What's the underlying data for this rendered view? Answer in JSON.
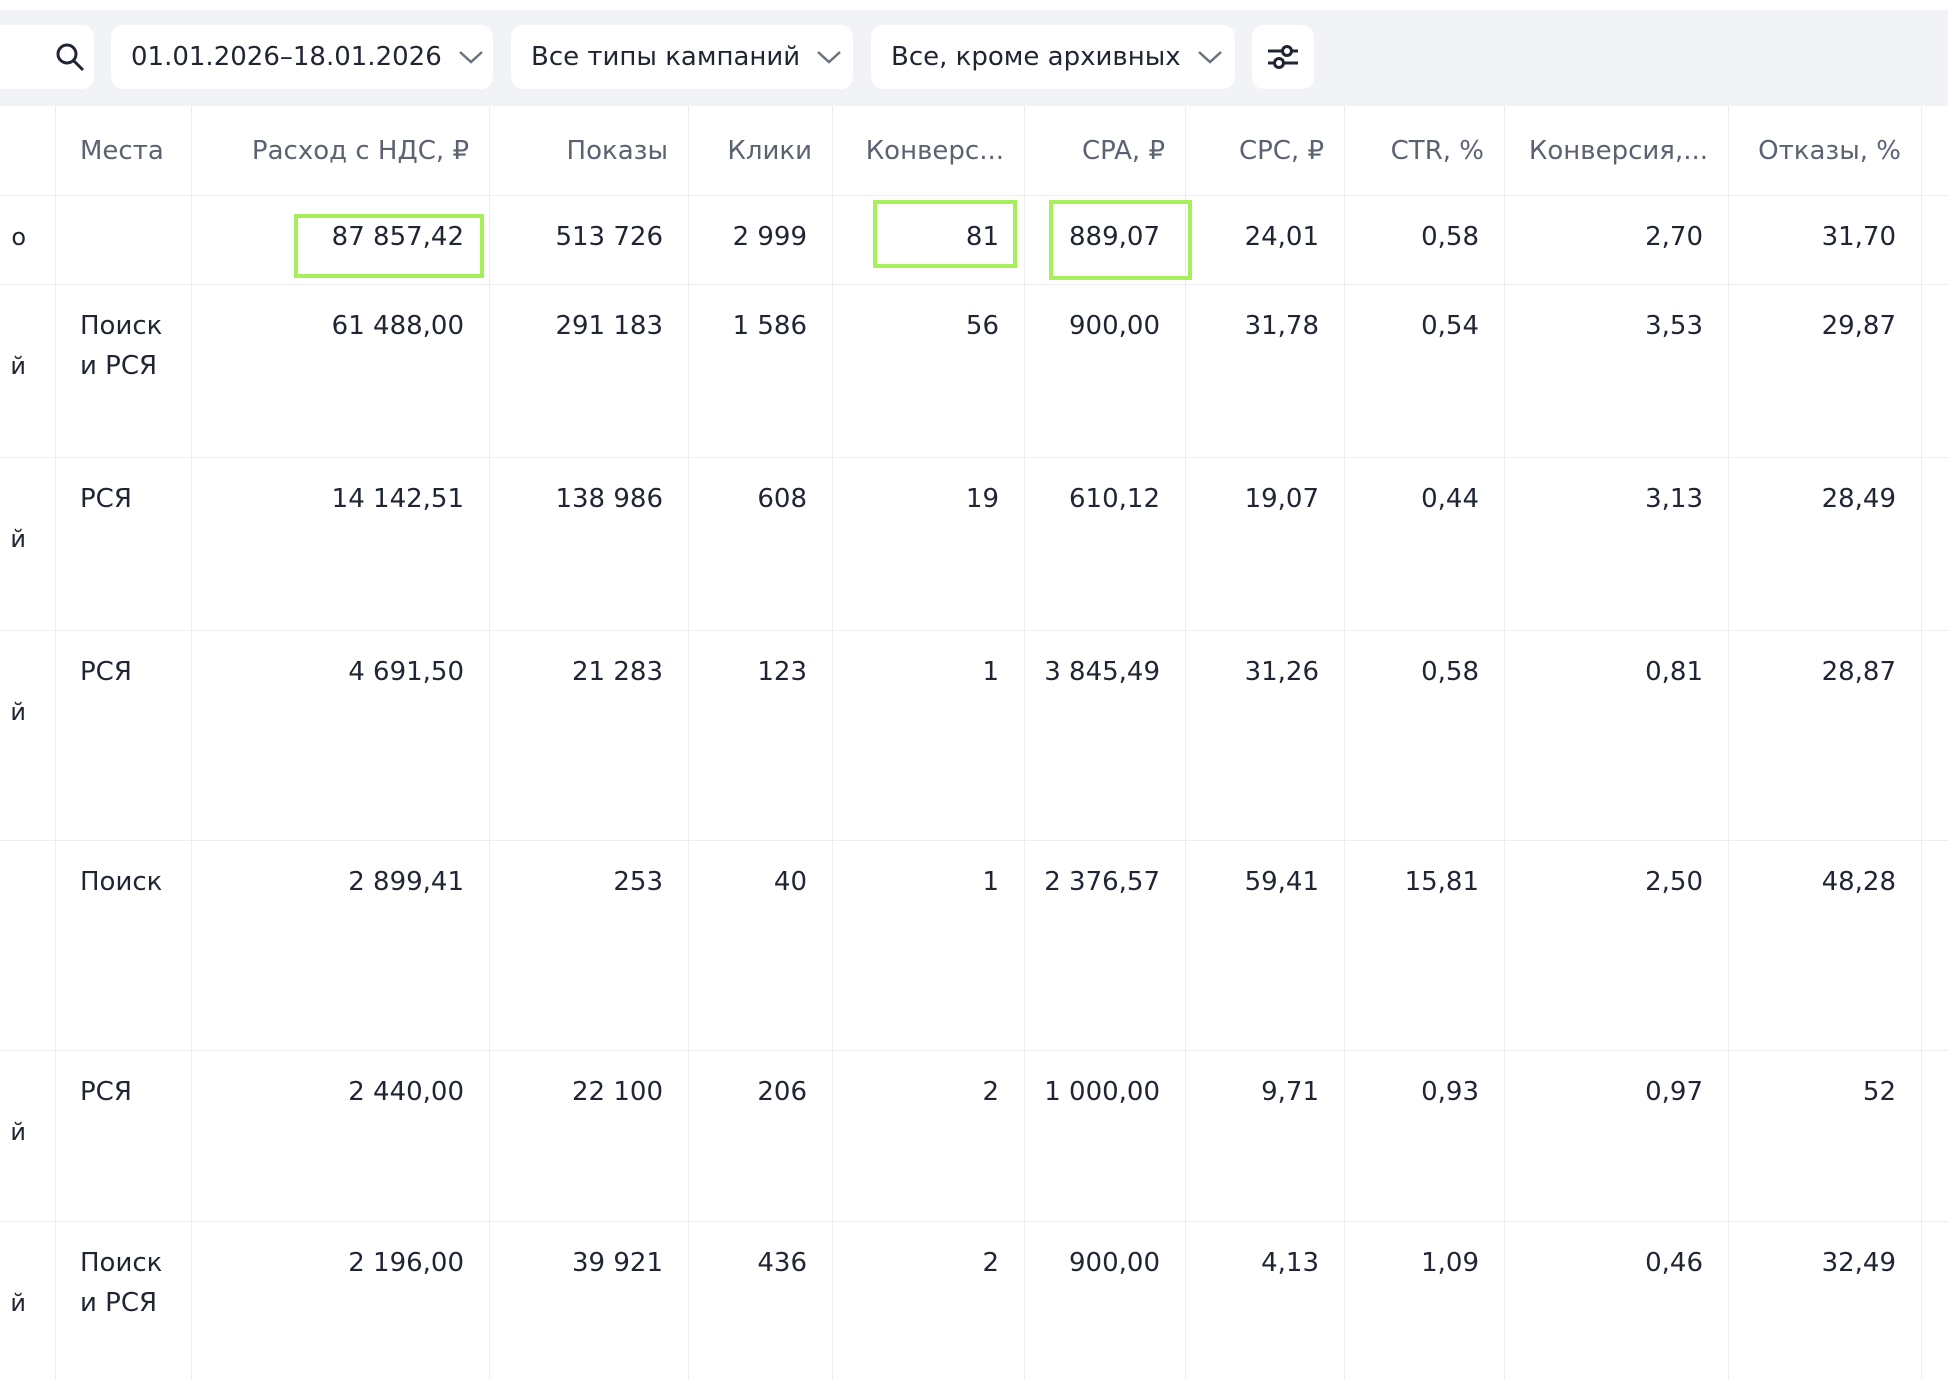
{
  "toolbar": {
    "date_range": "01.01.2026–18.01.2026",
    "campaign_types": "Все типы кампаний",
    "status": "Все, кроме архивных"
  },
  "table": {
    "columns": [
      "Места",
      "Расход с НДС, ₽",
      "Показы",
      "Клики",
      "Конверс...",
      "CPA, ₽",
      "CPC, ₽",
      "CTR, %",
      "Конверсия,...",
      "Отказы, %"
    ],
    "rows": [
      [
        "о",
        null,
        "87 857,42",
        "513 726",
        "2 999",
        "81",
        "889,07",
        "24,01",
        "0,58",
        "2,70",
        "31,70"
      ],
      [
        "й",
        "Поиск и РСЯ",
        "61 488,00",
        "291 183",
        "1 586",
        "56",
        "900,00",
        "31,78",
        "0,54",
        "3,53",
        "29,87"
      ],
      [
        "й",
        "РСЯ",
        "14 142,51",
        "138 986",
        "608",
        "19",
        "610,12",
        "19,07",
        "0,44",
        "3,13",
        "28,49"
      ],
      [
        "й",
        "РСЯ",
        "4 691,50",
        "21 283",
        "123",
        "1",
        "3 845,49",
        "31,26",
        "0,58",
        "0,81",
        "28,87"
      ],
      [
        null,
        "Поиск",
        "2 899,41",
        "253",
        "40",
        "1",
        "2 376,57",
        "59,41",
        "15,81",
        "2,50",
        "48,28"
      ],
      [
        "й",
        "РСЯ",
        "2 440,00",
        "22 100",
        "206",
        "2",
        "1 000,00",
        "9,71",
        "0,93",
        "0,97",
        "52"
      ],
      [
        "й",
        "Поиск и РСЯ",
        "2 196,00",
        "39 921",
        "436",
        "2",
        "900,00",
        "4,13",
        "1,09",
        "0,46",
        "32,49"
      ]
    ]
  }
}
